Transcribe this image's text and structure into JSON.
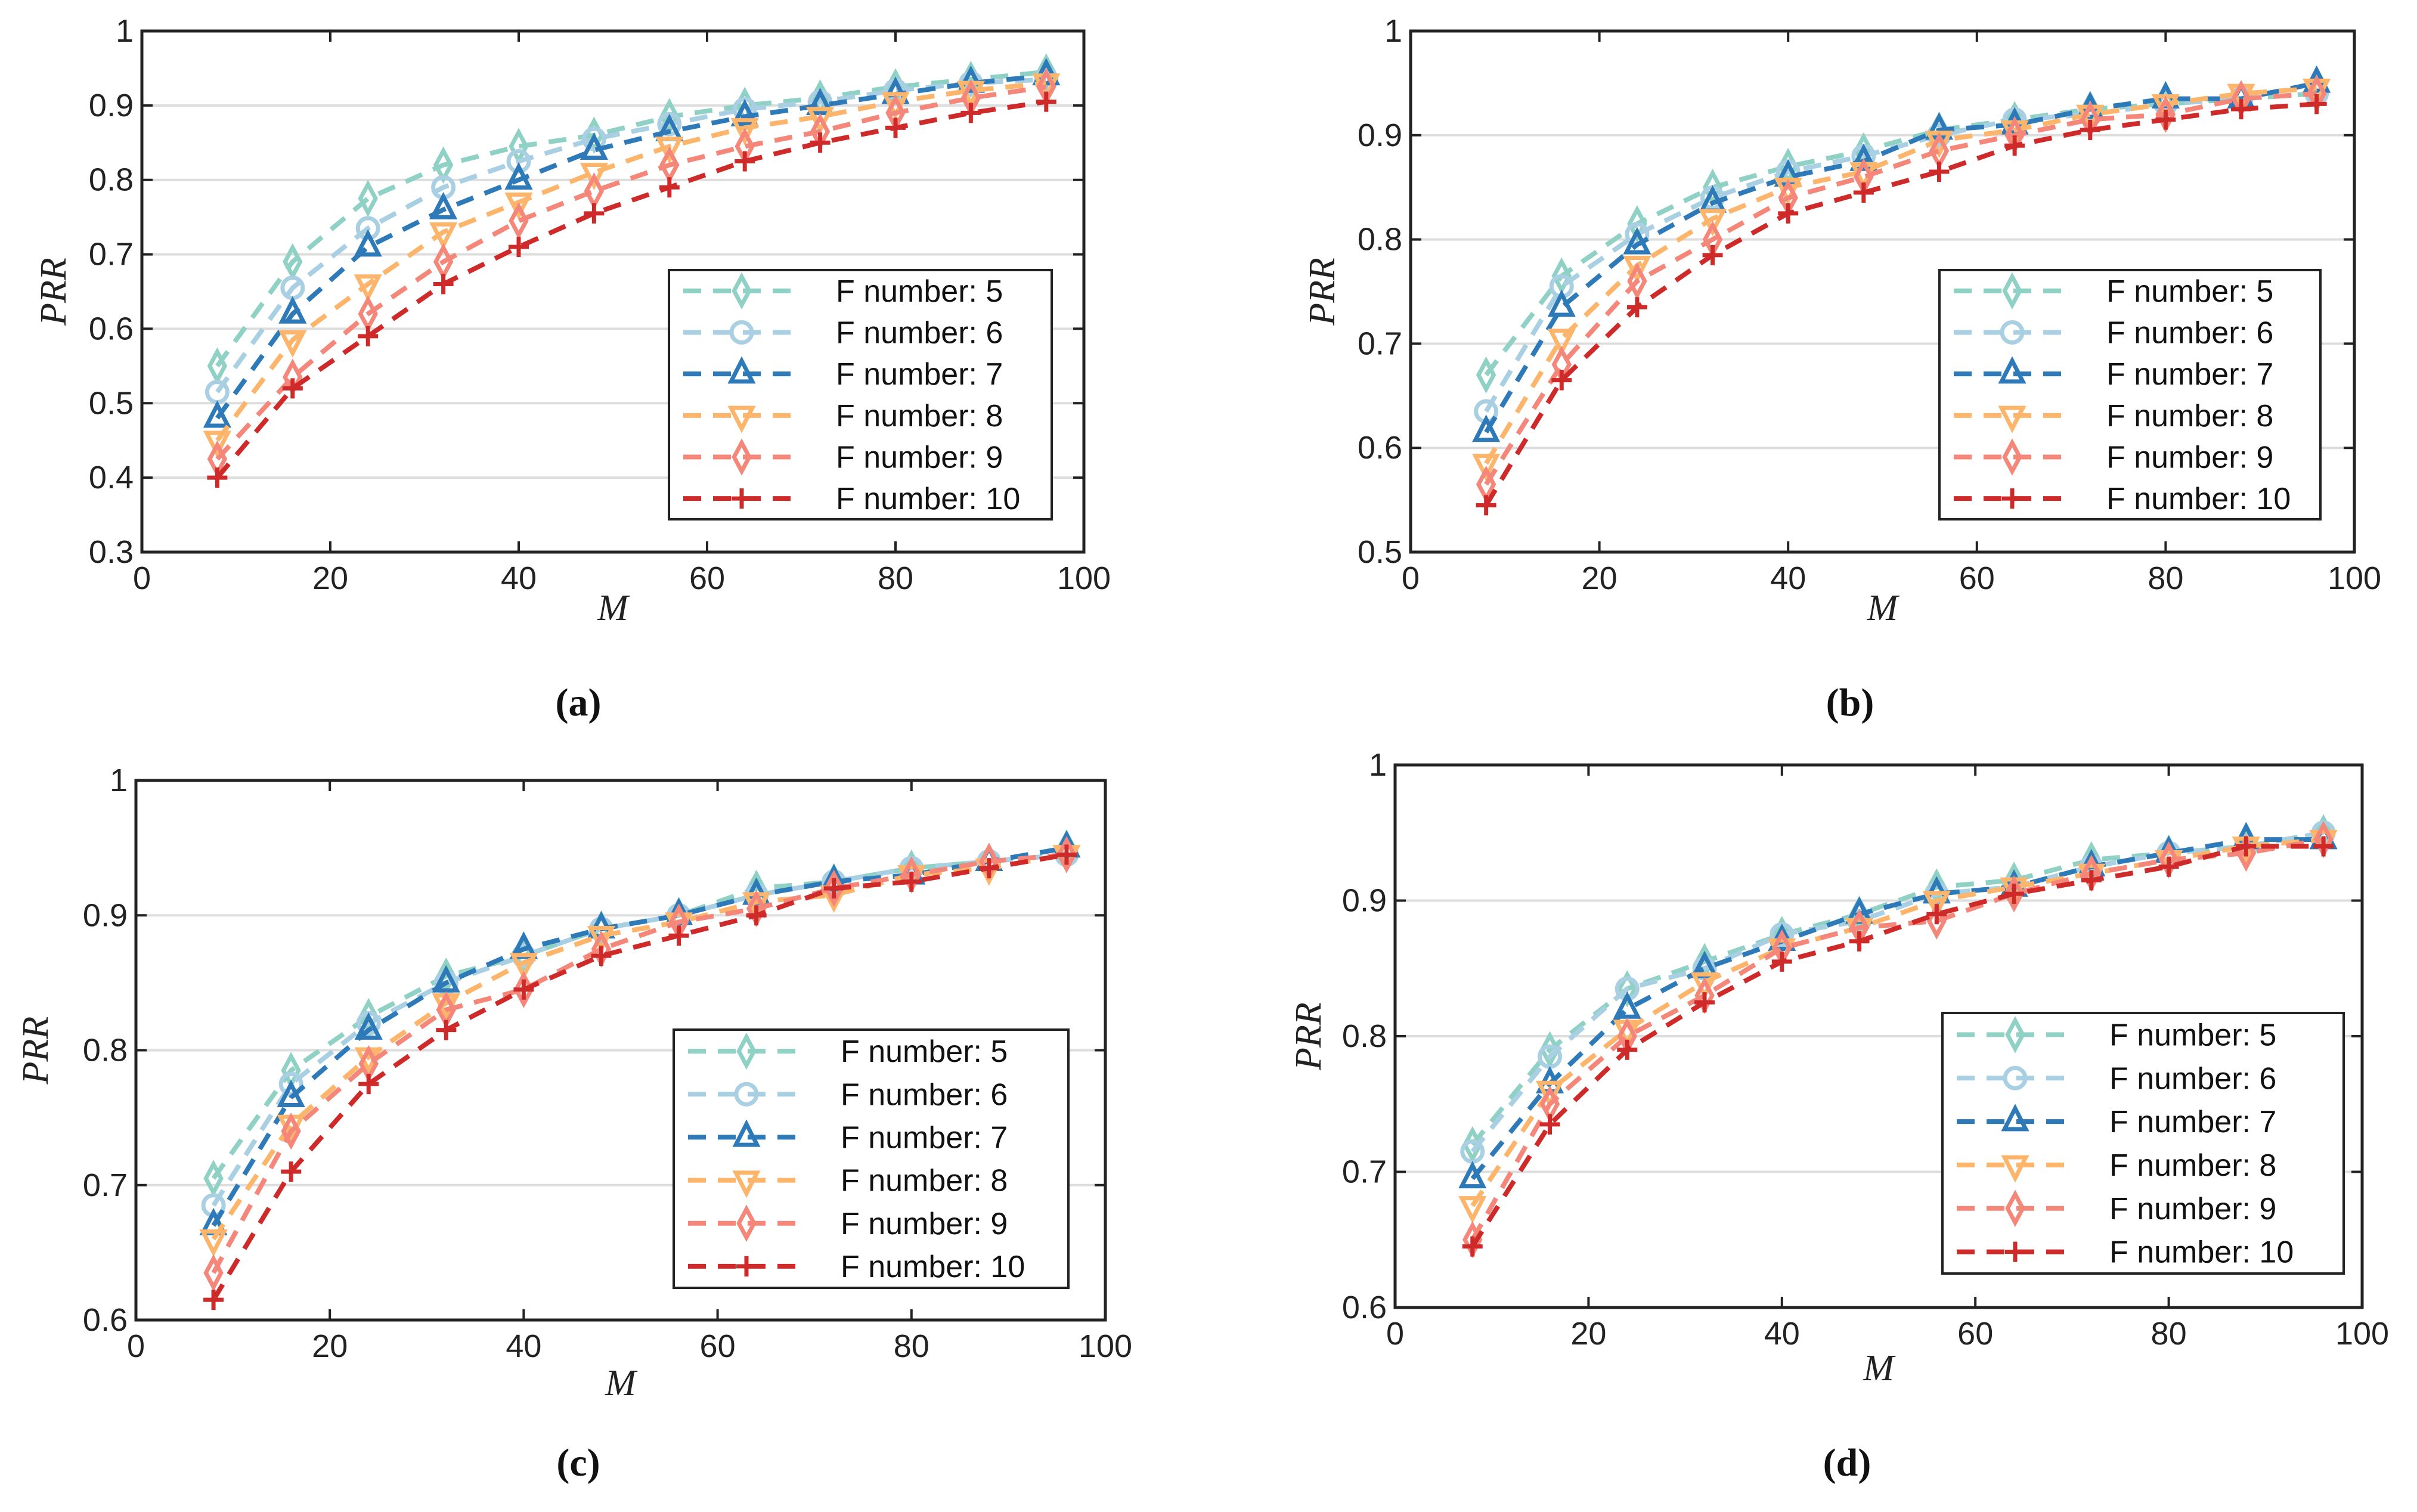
{
  "chart_data": [
    {
      "type": "line",
      "caption": "(a)",
      "xlabel": "M",
      "ylabel": "PRR",
      "xlim": [
        0,
        100
      ],
      "ylim": [
        0.3,
        1
      ],
      "xticks": [
        0,
        20,
        40,
        60,
        80,
        100
      ],
      "yticks": [
        0.3,
        0.4,
        0.5,
        0.6,
        0.7,
        0.8,
        0.9,
        1
      ],
      "ytick_labels": [
        "0.3",
        "0.4",
        "0.5",
        "0.6",
        "0.7",
        "0.8",
        "0.9",
        "1"
      ],
      "grid": "horizontal",
      "legend": "lower-right",
      "x": [
        8,
        16,
        24,
        32,
        40,
        48,
        56,
        64,
        72,
        80,
        88,
        96
      ],
      "series": [
        {
          "name": "F number: 5",
          "values": [
            0.55,
            0.69,
            0.775,
            0.82,
            0.845,
            0.86,
            0.885,
            0.9,
            0.91,
            0.925,
            0.935,
            0.945
          ]
        },
        {
          "name": "F number: 6",
          "values": [
            0.515,
            0.655,
            0.735,
            0.79,
            0.825,
            0.855,
            0.875,
            0.895,
            0.905,
            0.92,
            0.93,
            0.935
          ]
        },
        {
          "name": "F number: 7",
          "values": [
            0.48,
            0.62,
            0.71,
            0.76,
            0.8,
            0.84,
            0.865,
            0.885,
            0.9,
            0.915,
            0.93,
            0.94
          ]
        },
        {
          "name": "F number: 8",
          "values": [
            0.45,
            0.585,
            0.66,
            0.73,
            0.77,
            0.81,
            0.845,
            0.87,
            0.885,
            0.905,
            0.92,
            0.93
          ]
        },
        {
          "name": "F number: 9",
          "values": [
            0.425,
            0.535,
            0.62,
            0.69,
            0.745,
            0.785,
            0.82,
            0.845,
            0.865,
            0.89,
            0.91,
            0.925
          ]
        },
        {
          "name": "F number: 10",
          "values": [
            0.4,
            0.52,
            0.59,
            0.66,
            0.71,
            0.755,
            0.79,
            0.825,
            0.85,
            0.87,
            0.89,
            0.905
          ]
        }
      ]
    },
    {
      "type": "line",
      "caption": "(b)",
      "xlabel": "M",
      "ylabel": "PRR",
      "xlim": [
        0,
        100
      ],
      "ylim": [
        0.5,
        1
      ],
      "xticks": [
        0,
        20,
        40,
        60,
        80,
        100
      ],
      "yticks": [
        0.5,
        0.6,
        0.7,
        0.8,
        0.9,
        1
      ],
      "ytick_labels": [
        "0.5",
        "0.6",
        "0.7",
        "0.8",
        "0.9",
        "1"
      ],
      "grid": "horizontal",
      "legend": "lower-right",
      "x": [
        8,
        16,
        24,
        32,
        40,
        48,
        56,
        64,
        72,
        80,
        88,
        96
      ],
      "series": [
        {
          "name": "F number: 5",
          "values": [
            0.67,
            0.765,
            0.815,
            0.85,
            0.87,
            0.885,
            0.905,
            0.915,
            0.925,
            0.93,
            0.935,
            0.94
          ]
        },
        {
          "name": "F number: 6",
          "values": [
            0.635,
            0.755,
            0.805,
            0.84,
            0.865,
            0.88,
            0.9,
            0.915,
            0.92,
            0.93,
            0.935,
            0.94
          ]
        },
        {
          "name": "F number: 7",
          "values": [
            0.615,
            0.735,
            0.795,
            0.835,
            0.86,
            0.875,
            0.905,
            0.91,
            0.925,
            0.935,
            0.935,
            0.95
          ]
        },
        {
          "name": "F number: 8",
          "values": [
            0.585,
            0.705,
            0.775,
            0.82,
            0.85,
            0.865,
            0.895,
            0.905,
            0.92,
            0.93,
            0.94,
            0.945
          ]
        },
        {
          "name": "F number: 9",
          "values": [
            0.565,
            0.68,
            0.76,
            0.8,
            0.84,
            0.86,
            0.885,
            0.9,
            0.915,
            0.92,
            0.935,
            0.94
          ]
        },
        {
          "name": "F number: 10",
          "values": [
            0.545,
            0.665,
            0.735,
            0.785,
            0.825,
            0.845,
            0.865,
            0.89,
            0.905,
            0.915,
            0.925,
            0.93
          ]
        }
      ]
    },
    {
      "type": "line",
      "caption": "(c)",
      "xlabel": "M",
      "ylabel": "PRR",
      "xlim": [
        0,
        100
      ],
      "ylim": [
        0.6,
        1
      ],
      "xticks": [
        0,
        20,
        40,
        60,
        80,
        100
      ],
      "yticks": [
        0.6,
        0.7,
        0.8,
        0.9,
        1
      ],
      "ytick_labels": [
        "0.6",
        "0.7",
        "0.8",
        "0.9",
        "1"
      ],
      "grid": "horizontal",
      "legend": "lower-right",
      "x": [
        8,
        16,
        24,
        32,
        40,
        48,
        56,
        64,
        72,
        80,
        88,
        96
      ],
      "series": [
        {
          "name": "F number: 5",
          "values": [
            0.705,
            0.785,
            0.825,
            0.855,
            0.87,
            0.89,
            0.9,
            0.92,
            0.925,
            0.935,
            0.94,
            0.95
          ]
        },
        {
          "name": "F number: 6",
          "values": [
            0.685,
            0.775,
            0.82,
            0.85,
            0.87,
            0.89,
            0.9,
            0.915,
            0.925,
            0.935,
            0.94,
            0.945
          ]
        },
        {
          "name": "F number: 7",
          "values": [
            0.67,
            0.765,
            0.815,
            0.85,
            0.875,
            0.89,
            0.9,
            0.915,
            0.925,
            0.93,
            0.94,
            0.95
          ]
        },
        {
          "name": "F number: 8",
          "values": [
            0.66,
            0.745,
            0.795,
            0.835,
            0.865,
            0.885,
            0.895,
            0.91,
            0.915,
            0.93,
            0.935,
            0.945
          ]
        },
        {
          "name": "F number: 9",
          "values": [
            0.635,
            0.74,
            0.79,
            0.83,
            0.845,
            0.875,
            0.895,
            0.905,
            0.92,
            0.93,
            0.94,
            0.945
          ]
        },
        {
          "name": "F number: 10",
          "values": [
            0.615,
            0.71,
            0.775,
            0.815,
            0.845,
            0.87,
            0.885,
            0.9,
            0.92,
            0.925,
            0.935,
            0.945
          ]
        }
      ]
    },
    {
      "type": "line",
      "caption": "(d)",
      "xlabel": "M",
      "ylabel": "PRR",
      "xlim": [
        0,
        100
      ],
      "ylim": [
        0.6,
        1
      ],
      "xticks": [
        0,
        20,
        40,
        60,
        80,
        100
      ],
      "yticks": [
        0.6,
        0.7,
        0.8,
        0.9,
        1
      ],
      "ytick_labels": [
        "0.6",
        "0.7",
        "0.8",
        "0.9",
        "1"
      ],
      "grid": "horizontal",
      "legend": "lower-right",
      "x": [
        8,
        16,
        24,
        32,
        40,
        48,
        56,
        64,
        72,
        80,
        88,
        96
      ],
      "series": [
        {
          "name": "F number: 5",
          "values": [
            0.72,
            0.79,
            0.835,
            0.855,
            0.875,
            0.89,
            0.91,
            0.915,
            0.93,
            0.935,
            0.94,
            0.95
          ]
        },
        {
          "name": "F number: 6",
          "values": [
            0.715,
            0.785,
            0.835,
            0.85,
            0.875,
            0.885,
            0.905,
            0.91,
            0.925,
            0.935,
            0.94,
            0.95
          ]
        },
        {
          "name": "F number: 7",
          "values": [
            0.695,
            0.765,
            0.82,
            0.85,
            0.87,
            0.89,
            0.905,
            0.91,
            0.925,
            0.935,
            0.945,
            0.945
          ]
        },
        {
          "name": "F number: 8",
          "values": [
            0.675,
            0.76,
            0.805,
            0.84,
            0.865,
            0.88,
            0.9,
            0.91,
            0.92,
            0.93,
            0.94,
            0.945
          ]
        },
        {
          "name": "F number: 9",
          "values": [
            0.65,
            0.75,
            0.8,
            0.83,
            0.865,
            0.88,
            0.885,
            0.905,
            0.92,
            0.93,
            0.935,
            0.945
          ]
        },
        {
          "name": "F number: 10",
          "values": [
            0.645,
            0.735,
            0.79,
            0.825,
            0.855,
            0.87,
            0.89,
            0.905,
            0.915,
            0.925,
            0.94,
            0.94
          ]
        }
      ]
    }
  ],
  "style": {
    "series_colors": [
      "#8fd1c4",
      "#a9cfe3",
      "#2e7ab8",
      "#fdb56b",
      "#f4877a",
      "#cf2a2a"
    ],
    "series_markers": [
      "diamond",
      "circle",
      "triangle-up",
      "triangle-down",
      "diamond",
      "plus"
    ]
  }
}
